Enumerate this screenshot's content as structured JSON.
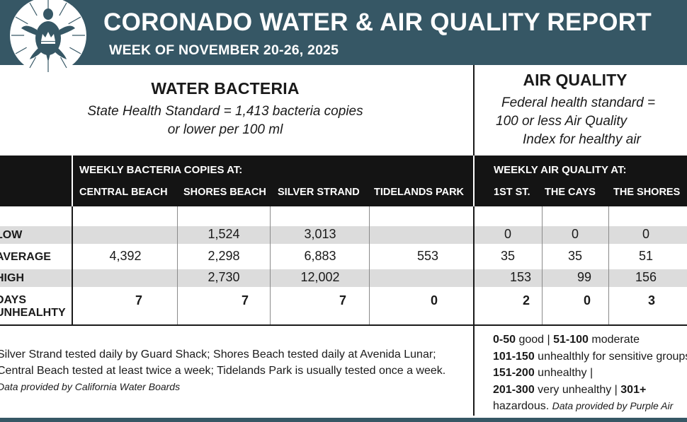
{
  "header": {
    "title": "CORONADO WATER & AIR QUALITY REPORT",
    "subtitle": "WEEK OF NOVEMBER 20-26, 2025",
    "logo_icon": "sea-turtle-crown-icon"
  },
  "colors": {
    "header_bg": "#365765",
    "band_bg": "#141414",
    "shade": "#dcdcdc"
  },
  "water": {
    "heading": "WATER BACTERIA",
    "standard_line1": "State Health Standard  = 1,413 bacteria copies",
    "standard_line2": "or lower per 100 ml",
    "group_label": "WEEKLY BACTERIA COPIES AT:",
    "columns": [
      "CENTRAL BEACH",
      "SHORES BEACH",
      "SILVER STRAND",
      "TIDELANDS PARK"
    ]
  },
  "air": {
    "heading": "AIR QUALITY",
    "standard_line1": "Federal health standard =",
    "standard_line2": "100 or less Air Quality",
    "standard_line3": "Index for healthy air",
    "group_label": "WEEKLY AIR QUALITY AT:",
    "columns": [
      "1ST ST.",
      "THE CAYS",
      "THE SHORES"
    ]
  },
  "rows": {
    "low": {
      "label": "LOW",
      "water": [
        "",
        "1,524",
        "3,013",
        ""
      ],
      "air": [
        "0",
        "0",
        "0"
      ]
    },
    "average": {
      "label": "AVERAGE",
      "water": [
        "4,392",
        "2,298",
        "6,883",
        "553"
      ],
      "air": [
        "35",
        "35",
        "51"
      ]
    },
    "high": {
      "label": "HIGH",
      "water": [
        "",
        "2,730",
        "12,002",
        ""
      ],
      "air": [
        "153",
        "99",
        "156"
      ]
    },
    "unhealthy": {
      "label1": "DAYS",
      "label2": "UNHEALHTY",
      "water": [
        "7",
        "7",
        "7",
        "0"
      ],
      "air": [
        "2",
        "0",
        "3"
      ]
    }
  },
  "footer": {
    "water_note": "Silver Strand tested daily by Guard Shack; Shores Beach tested daily at Avenida Lunar; Central Beach tested at least twice a week; Tidelands Park is usually tested once a week.",
    "water_source": "Data provided by California Water Boards",
    "aqi_legend": {
      "r1": "0-50",
      "t1": " good | ",
      "r2": "51-100",
      "t2": " moderate ",
      "r3": "101-150",
      "t3": " unhealthly for sensitive groups | ",
      "r4": "151-200",
      "t4": " unhealthy | ",
      "r5": "201-300",
      "t5": " very unhealthy | ",
      "r6": "301+",
      "t6": " hazardous. "
    },
    "air_source": "Data provided by Purple Air"
  }
}
